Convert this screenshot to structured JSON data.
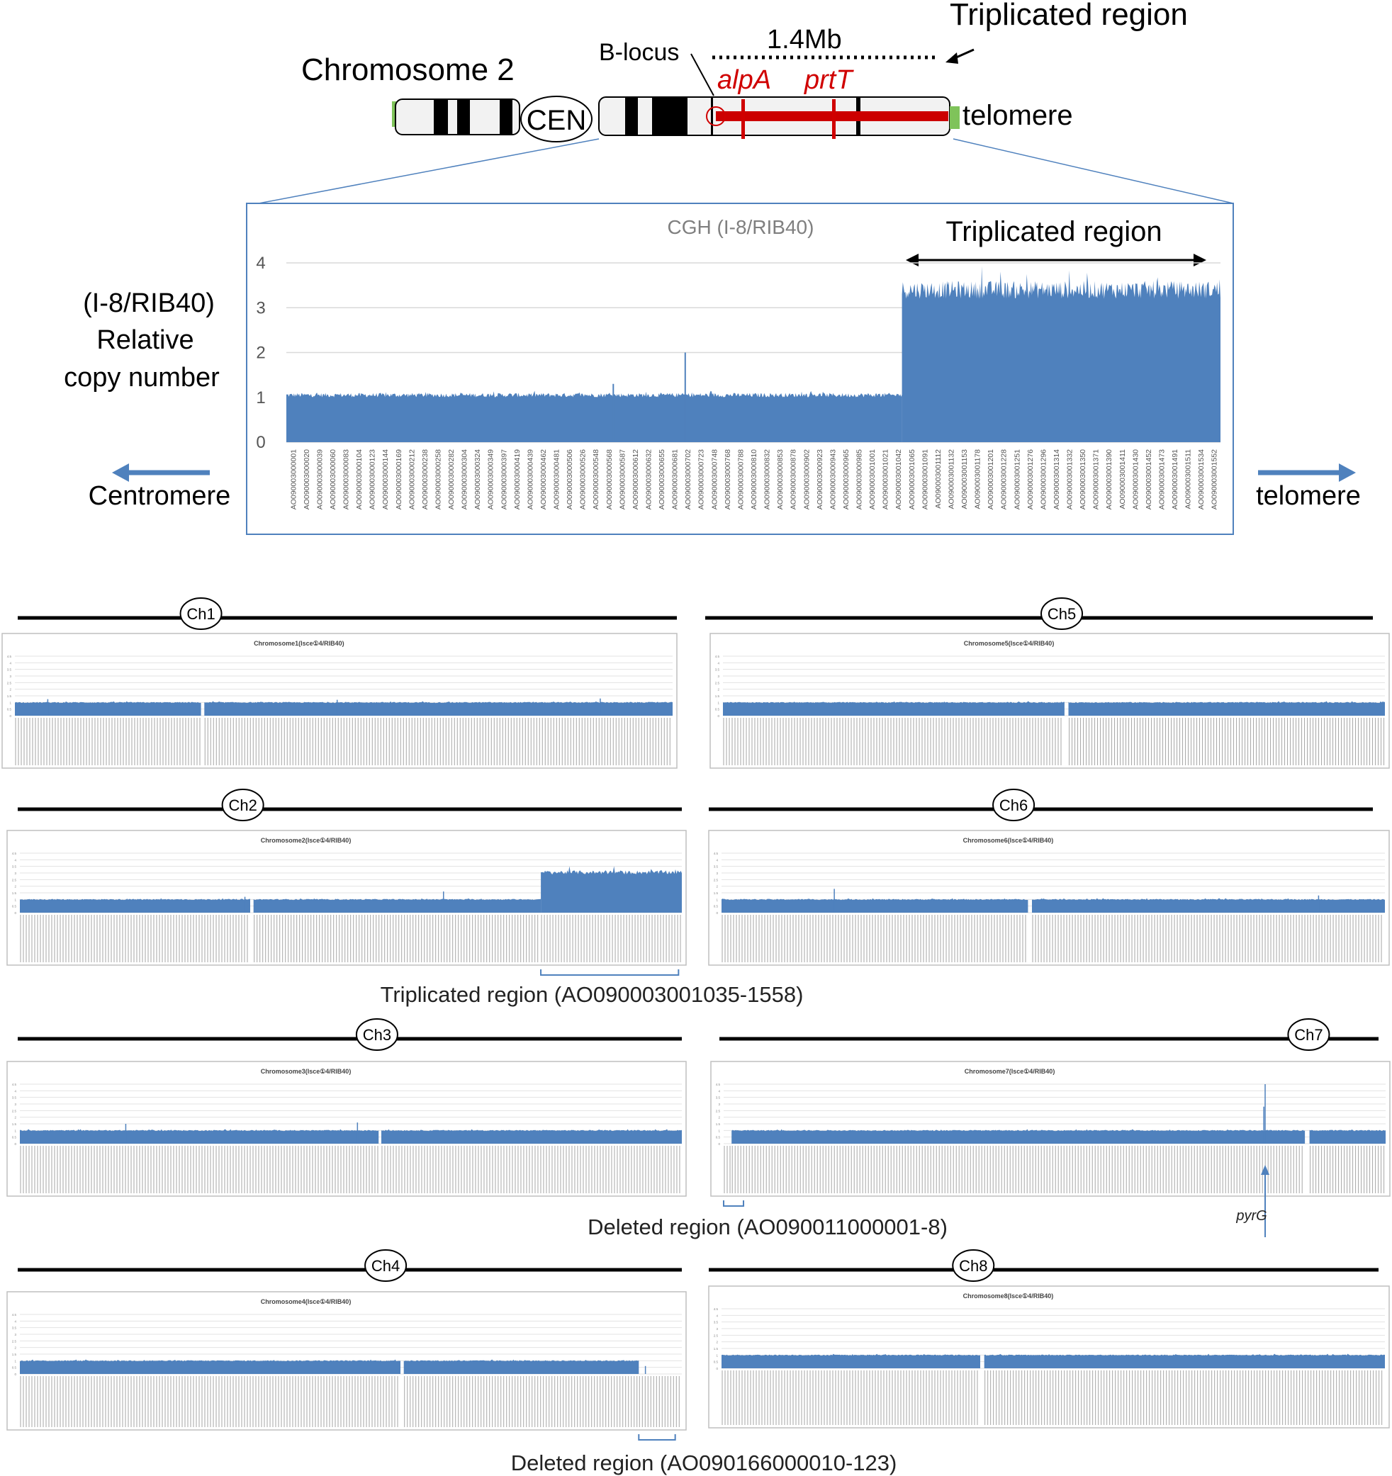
{
  "colors": {
    "bar": "#4f81bd",
    "red": "#d00000",
    "green": "#7fc35a",
    "frame": "#4f81bd",
    "grid": "#d9d9d9",
    "text": "#000000",
    "muted": "#7f7f7f"
  },
  "schematic": {
    "chromosome_label": "Chromosome 2",
    "triplicated_label": "Triplicated region",
    "size_label": "1.4Mb",
    "blocus_label": "B-locus",
    "gene1": "alpA",
    "gene2": "prtT",
    "cen_label": "CEN",
    "telomere_label": "telomere"
  },
  "main_chart_text": {
    "ylabel_lines": [
      "(I-8/RIB40)",
      "Relative",
      "copy number"
    ],
    "left_arrow_label": "Centromere",
    "right_arrow_label": "telomere",
    "triplicated_label": "Triplicated region"
  },
  "panel_notes": {
    "ch2": "Triplicated region (AO090003001035-1558)",
    "ch7": "Deleted region (AO090011000001-8)",
    "ch7_gene": "pyrG",
    "ch4": "Deleted region (AO090166000010-123)"
  },
  "chart_data": [
    {
      "id": "main",
      "type": "bar",
      "title": "CGH (I-8/RIB40)",
      "xlabel": "",
      "ylabel": "(I-8/RIB40) Relative copy number",
      "ylim": [
        0,
        4
      ],
      "yticks": [
        "0",
        "1",
        "2",
        "3",
        "4"
      ],
      "grid": true,
      "categories": [
        "AO090003000001",
        "AO090003000020",
        "AO090003000039",
        "AO090003000060",
        "AO090003000083",
        "AO090003000104",
        "AO090003000123",
        "AO090003000144",
        "AO090003000169",
        "AO090003000212",
        "AO090003000238",
        "AO090003000258",
        "AO090003000282",
        "AO090003000304",
        "AO090003000324",
        "AO090003000349",
        "AO090003000397",
        "AO090003000419",
        "AO090003000439",
        "AO090003000462",
        "AO090003000481",
        "AO090003000506",
        "AO090003000526",
        "AO090003000548",
        "AO090003000568",
        "AO090003000587",
        "AO090003000612",
        "AO090003000632",
        "AO090003000655",
        "AO090003000681",
        "AO090003000702",
        "AO090003000723",
        "AO090003000748",
        "AO090003000768",
        "AO090003000788",
        "AO090003000810",
        "AO090003000832",
        "AO090003000853",
        "AO090003000878",
        "AO090003000902",
        "AO090003000923",
        "AO090003000943",
        "AO090003000965",
        "AO090003000985",
        "AO090003001001",
        "AO090003001021",
        "AO090003001042",
        "AO090003001065",
        "AO090003001091",
        "AO090003001112",
        "AO090003001132",
        "AO090003001153",
        "AO090003001178",
        "AO090003001201",
        "AO090003001228",
        "AO090003001251",
        "AO090003001276",
        "AO090003001296",
        "AO090003001314",
        "AO090003001332",
        "AO090003001350",
        "AO090003001371",
        "AO090003001390",
        "AO090003001411",
        "AO090003001430",
        "AO090003001452",
        "AO090003001473",
        "AO090003001491",
        "AO090003001511",
        "AO090003001534",
        "AO090003001552"
      ],
      "segments": [
        {
          "x_from_frac": 0.0,
          "x_to_frac": 0.659,
          "base_value": 1.05,
          "noise": 0.05,
          "peak_value": 1.15
        },
        {
          "x_from_frac": 0.659,
          "x_to_frac": 1.0,
          "base_value": 3.4,
          "noise": 0.2,
          "peak_value": 4.0
        }
      ],
      "spikes": [
        {
          "x_frac": 0.427,
          "value": 2.0
        },
        {
          "x_frac": 0.35,
          "value": 1.3
        }
      ]
    },
    {
      "id": "ch1",
      "type": "bar",
      "title": "Chromosome1(Isce①4/RIB40)",
      "ylim": [
        0,
        4.5
      ],
      "grid": true,
      "segments": [
        {
          "x_from_frac": 0.0,
          "x_to_frac": 0.283,
          "base_value": 1.0,
          "noise": 0.04,
          "peak_value": 1.1
        },
        {
          "x_from_frac": 0.288,
          "x_to_frac": 1.0,
          "base_value": 1.0,
          "noise": 0.04,
          "peak_value": 1.1
        }
      ],
      "spikes": [
        {
          "x_frac": 0.05,
          "value": 1.25
        },
        {
          "x_frac": 0.49,
          "value": 1.2
        },
        {
          "x_frac": 0.89,
          "value": 1.3
        }
      ]
    },
    {
      "id": "ch2",
      "type": "bar",
      "title": "Chromosome2(Isce①4/RIB40)",
      "ylim": [
        0,
        4.5
      ],
      "grid": true,
      "segments": [
        {
          "x_from_frac": 0.0,
          "x_to_frac": 0.348,
          "base_value": 1.0,
          "noise": 0.04,
          "peak_value": 1.1
        },
        {
          "x_from_frac": 0.353,
          "x_to_frac": 0.787,
          "base_value": 1.0,
          "noise": 0.04,
          "peak_value": 1.1
        },
        {
          "x_from_frac": 0.787,
          "x_to_frac": 1.0,
          "base_value": 3.05,
          "noise": 0.15,
          "peak_value": 3.6
        }
      ],
      "spikes": [
        {
          "x_frac": 0.34,
          "value": 1.2
        },
        {
          "x_frac": 0.64,
          "value": 1.6
        }
      ],
      "bracket": {
        "from_frac": 0.787,
        "to_frac": 0.995
      }
    },
    {
      "id": "ch3",
      "type": "bar",
      "title": "Chromosome3(Isce①4/RIB40)",
      "ylim": [
        0,
        4.5
      ],
      "grid": true,
      "segments": [
        {
          "x_from_frac": 0.0,
          "x_to_frac": 0.542,
          "base_value": 1.0,
          "noise": 0.04,
          "peak_value": 1.1
        },
        {
          "x_from_frac": 0.546,
          "x_to_frac": 1.0,
          "base_value": 1.0,
          "noise": 0.04,
          "peak_value": 1.1
        }
      ],
      "spikes": [
        {
          "x_frac": 0.16,
          "value": 1.5
        },
        {
          "x_frac": 0.51,
          "value": 1.6
        }
      ]
    },
    {
      "id": "ch4",
      "type": "bar",
      "title": "Chromosome4(Isce①4/RIB40)",
      "ylim": [
        0,
        4.5
      ],
      "grid": true,
      "segments": [
        {
          "x_from_frac": 0.0,
          "x_to_frac": 0.575,
          "base_value": 1.0,
          "noise": 0.04,
          "peak_value": 1.1
        },
        {
          "x_from_frac": 0.58,
          "x_to_frac": 0.935,
          "base_value": 1.0,
          "noise": 0.04,
          "peak_value": 1.1
        },
        {
          "x_from_frac": 0.935,
          "x_to_frac": 1.0,
          "base_value": 0.0,
          "noise": 0.0,
          "peak_value": 0.0
        }
      ],
      "spikes": [
        {
          "x_frac": 0.945,
          "value": 0.6
        }
      ],
      "bracket": {
        "from_frac": 0.935,
        "to_frac": 0.99
      }
    },
    {
      "id": "ch5",
      "type": "bar",
      "title": "Chromosome5(Isce①4/RIB40)",
      "ylim": [
        0,
        4.5
      ],
      "grid": true,
      "segments": [
        {
          "x_from_frac": 0.0,
          "x_to_frac": 0.516,
          "base_value": 1.0,
          "noise": 0.04,
          "peak_value": 1.1
        },
        {
          "x_from_frac": 0.522,
          "x_to_frac": 1.0,
          "base_value": 1.0,
          "noise": 0.04,
          "peak_value": 1.1
        }
      ],
      "spikes": []
    },
    {
      "id": "ch6",
      "type": "bar",
      "title": "Chromosome6(Isce①4/RIB40)",
      "ylim": [
        0,
        4.5
      ],
      "grid": true,
      "segments": [
        {
          "x_from_frac": 0.0,
          "x_to_frac": 0.462,
          "base_value": 1.0,
          "noise": 0.04,
          "peak_value": 1.1
        },
        {
          "x_from_frac": 0.468,
          "x_to_frac": 1.0,
          "base_value": 1.0,
          "noise": 0.04,
          "peak_value": 1.1
        }
      ],
      "spikes": [
        {
          "x_frac": 0.17,
          "value": 1.8
        },
        {
          "x_frac": 0.9,
          "value": 1.3
        }
      ]
    },
    {
      "id": "ch7",
      "type": "bar",
      "title": "Chromosome7(Isce①4/RIB40)",
      "ylim": [
        0,
        4.5
      ],
      "grid": true,
      "segments": [
        {
          "x_from_frac": 0.0,
          "x_to_frac": 0.012,
          "base_value": 0.0,
          "noise": 0.0,
          "peak_value": 0.0
        },
        {
          "x_from_frac": 0.012,
          "x_to_frac": 0.878,
          "base_value": 1.0,
          "noise": 0.04,
          "peak_value": 1.1
        },
        {
          "x_from_frac": 0.885,
          "x_to_frac": 1.0,
          "base_value": 1.0,
          "noise": 0.04,
          "peak_value": 1.1
        }
      ],
      "spikes": [
        {
          "x_frac": 0.818,
          "value": 4.5
        },
        {
          "x_frac": 0.816,
          "value": 2.8
        }
      ],
      "bracket": {
        "from_frac": 0.0,
        "to_frac": 0.03
      },
      "arrow_x_frac": 0.818
    },
    {
      "id": "ch8",
      "type": "bar",
      "title": "Chromosome8(Isce①4/RIB40)",
      "ylim": [
        0,
        4.5
      ],
      "grid": true,
      "segments": [
        {
          "x_from_frac": 0.0,
          "x_to_frac": 0.39,
          "base_value": 1.0,
          "noise": 0.04,
          "peak_value": 1.1
        },
        {
          "x_from_frac": 0.396,
          "x_to_frac": 1.0,
          "base_value": 1.0,
          "noise": 0.04,
          "peak_value": 1.1
        }
      ],
      "spikes": []
    }
  ],
  "chromosome_lines": [
    {
      "label": "Ch1",
      "centromere_frac": 0.278
    },
    {
      "label": "Ch2",
      "centromere_frac": 0.339
    },
    {
      "label": "Ch3",
      "centromere_frac": 0.541
    },
    {
      "label": "Ch4",
      "centromere_frac": 0.554
    },
    {
      "label": "Ch5",
      "centromere_frac": 0.534
    },
    {
      "label": "Ch6",
      "centromere_frac": 0.459
    },
    {
      "label": "Ch7",
      "centromere_frac": 0.894
    },
    {
      "label": "Ch8",
      "centromere_frac": 0.395
    }
  ]
}
